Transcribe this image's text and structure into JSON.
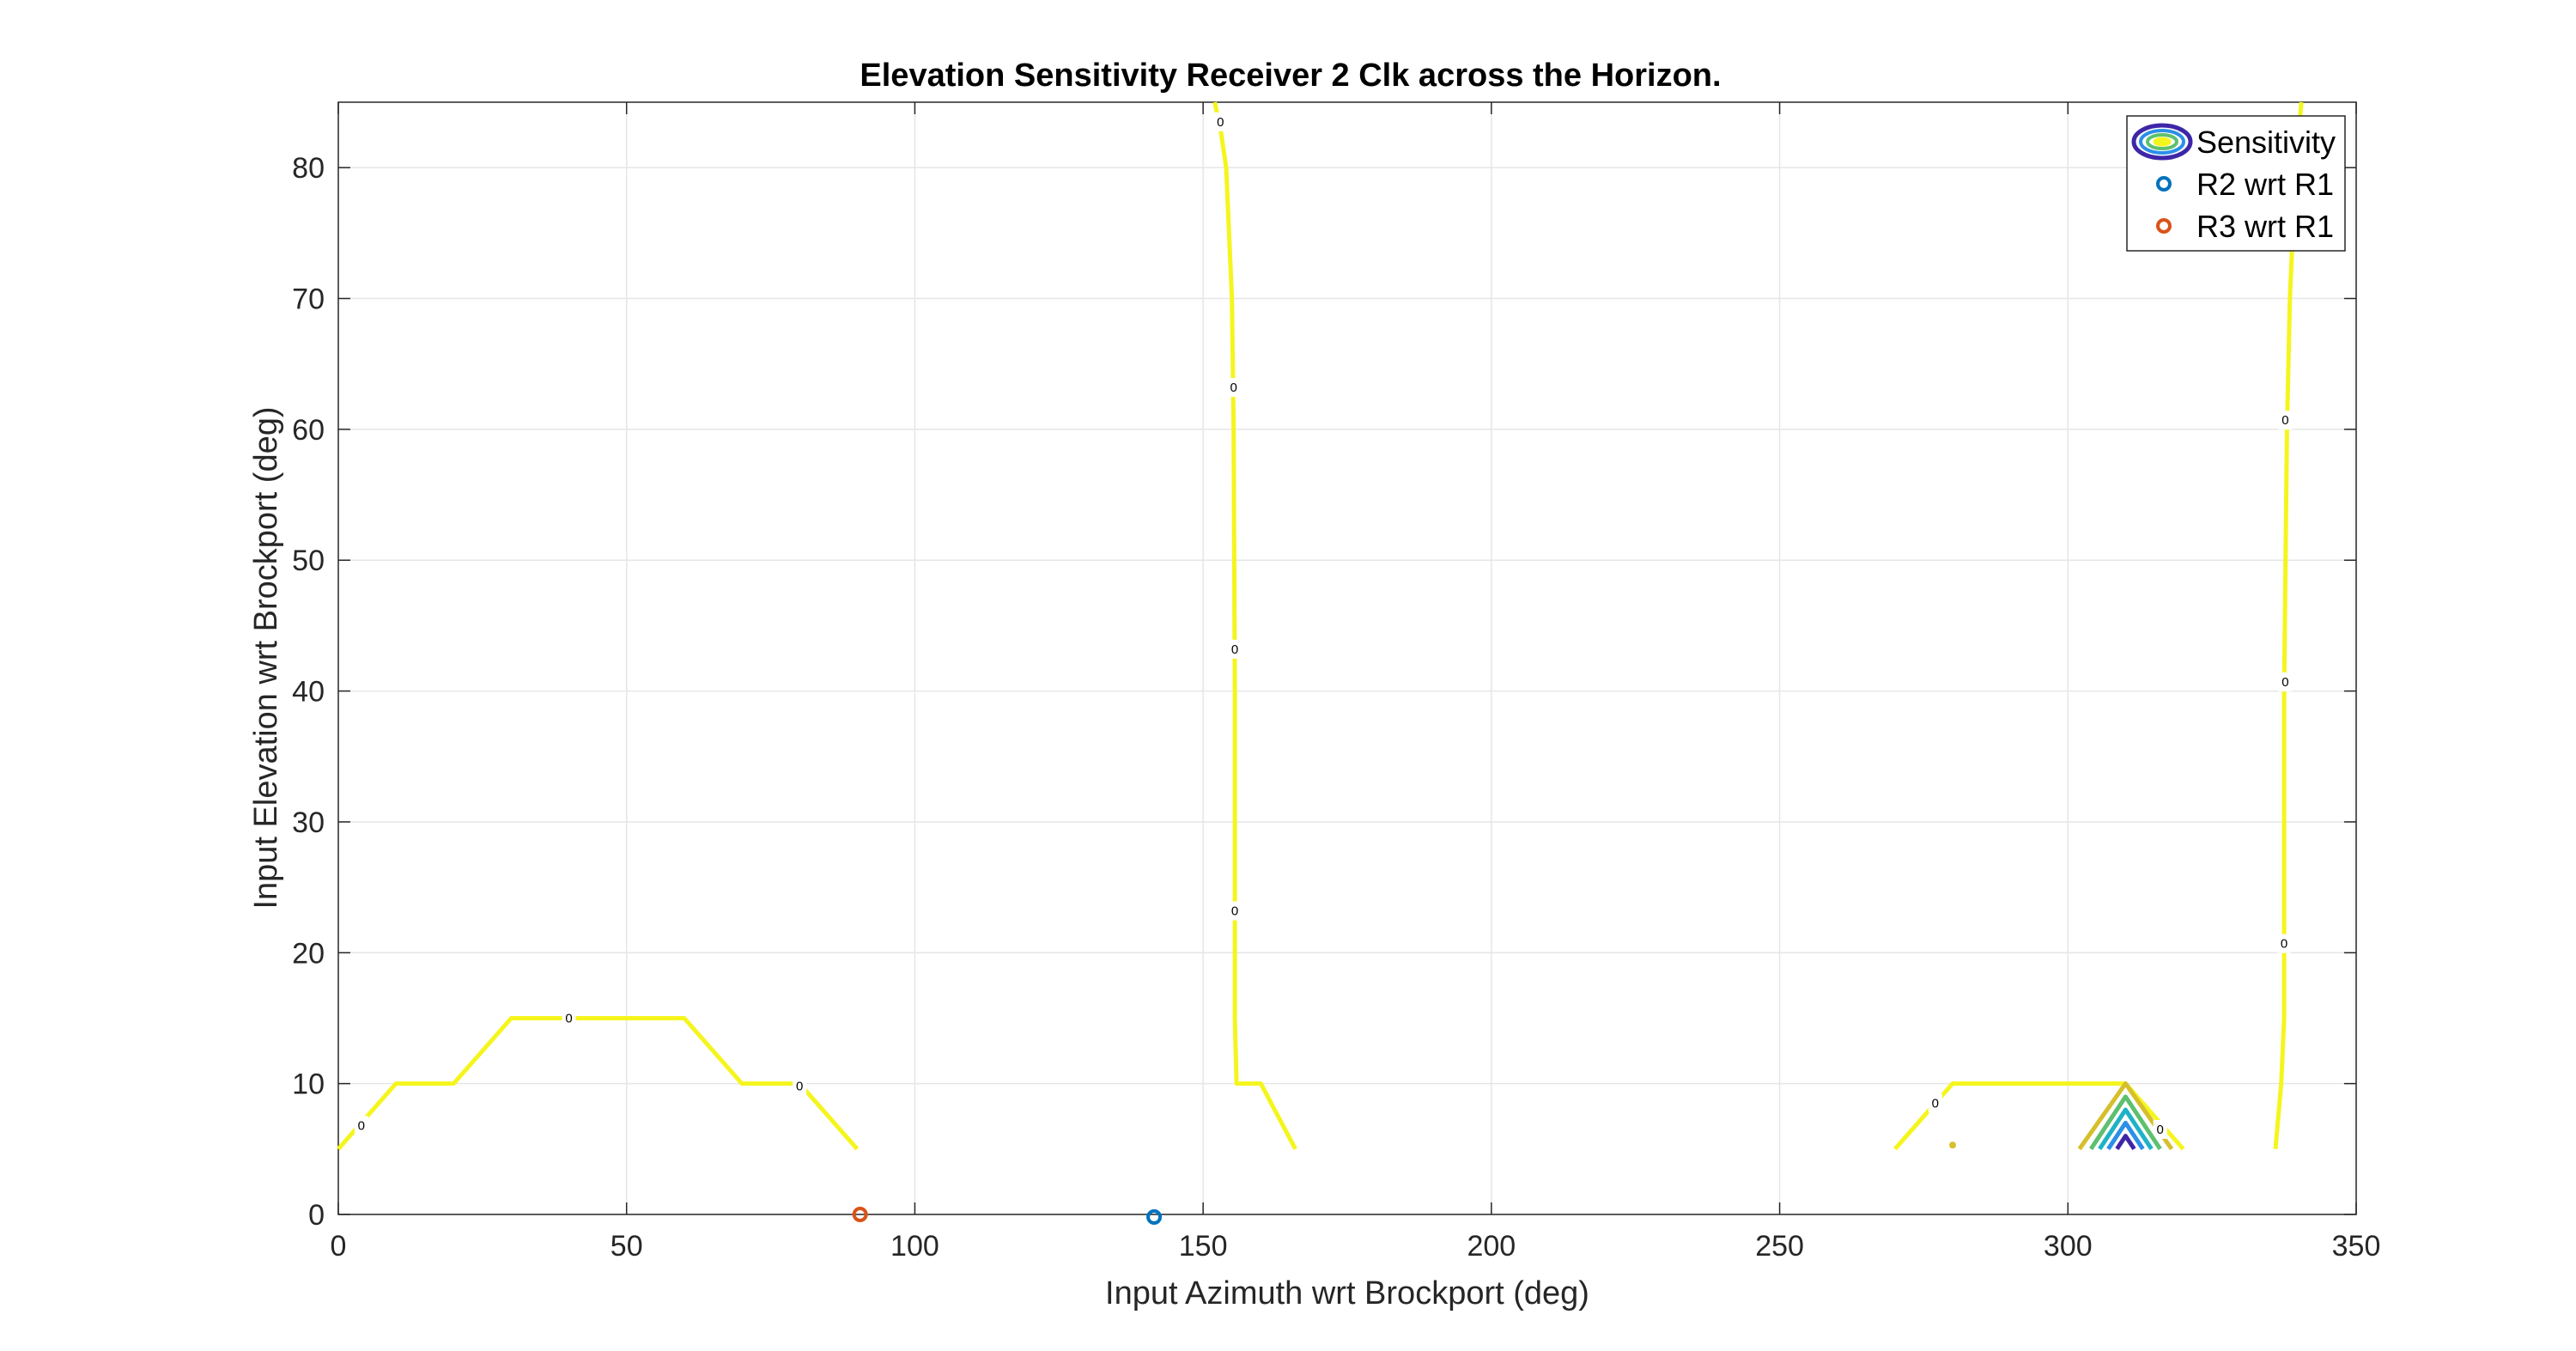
{
  "chart_data": {
    "type": "contour",
    "title": "Elevation Sensitivity Receiver 2 Clk across the Horizon.",
    "xlabel": "Input Azimuth wrt Brockport (deg)",
    "ylabel": "Input Elevation wrt Brockport (deg)",
    "xlim": [
      0,
      350
    ],
    "ylim": [
      0,
      85
    ],
    "xticks": [
      0,
      50,
      100,
      150,
      200,
      250,
      300,
      350
    ],
    "yticks": [
      0,
      10,
      20,
      30,
      40,
      50,
      60,
      70,
      80
    ],
    "grid": true,
    "legend": {
      "placement": "top-right",
      "entries": [
        "Sensitivity",
        "R2 wrt R1",
        "R3 wrt R1"
      ]
    },
    "contours": [
      {
        "level": 0,
        "color": "#f5f51e",
        "points": [
          [
            0,
            5
          ],
          [
            10,
            10
          ],
          [
            20,
            10
          ],
          [
            30,
            15
          ],
          [
            60,
            15
          ],
          [
            70,
            10
          ],
          [
            80,
            10
          ],
          [
            90,
            5
          ]
        ],
        "labels": [
          [
            4,
            6.8
          ],
          [
            40,
            15
          ],
          [
            80,
            9.8
          ]
        ]
      },
      {
        "level": 0,
        "color": "#f5f51e",
        "points": [
          [
            152,
            85
          ],
          [
            153,
            83
          ],
          [
            154,
            80
          ],
          [
            155,
            70
          ],
          [
            155.3,
            60
          ],
          [
            155.5,
            40
          ],
          [
            155.5,
            20
          ],
          [
            155.5,
            15
          ],
          [
            155.8,
            10
          ],
          [
            160,
            10
          ],
          [
            166,
            5
          ]
        ],
        "labels": [
          [
            153,
            83.5
          ],
          [
            155.3,
            63.2
          ],
          [
            155.5,
            43.2
          ],
          [
            155.5,
            23.2
          ]
        ]
      },
      {
        "level": 0,
        "color": "#f5f51e",
        "points": [
          [
            270,
            5
          ],
          [
            280,
            10
          ],
          [
            310,
            10
          ],
          [
            320,
            5
          ]
        ],
        "labels": [
          [
            277,
            8.5
          ]
        ]
      },
      {
        "level": 0,
        "color": "#f5f51e",
        "points": [
          [
            340.5,
            85
          ],
          [
            339.5,
            80
          ],
          [
            338.5,
            70
          ],
          [
            338,
            60
          ],
          [
            337.5,
            40
          ],
          [
            337.5,
            20
          ],
          [
            337.5,
            15
          ],
          [
            337,
            10
          ],
          [
            336,
            5
          ]
        ],
        "labels": [
          [
            337.7,
            60.7
          ],
          [
            337.7,
            40.7
          ],
          [
            337.5,
            20.7
          ]
        ]
      },
      {
        "level": "inner-1",
        "color": "#d6bf2c",
        "points": [
          [
            302,
            5
          ],
          [
            310,
            10
          ],
          [
            318,
            5
          ]
        ],
        "labels": [
          [
            316,
            6.5
          ]
        ]
      },
      {
        "level": "inner-2",
        "color": "#5dc06e",
        "points": [
          [
            304,
            5
          ],
          [
            310,
            9
          ],
          [
            316,
            5
          ]
        ],
        "labels": []
      },
      {
        "level": "inner-3",
        "color": "#1fb2c6",
        "points": [
          [
            305.5,
            5
          ],
          [
            310,
            8
          ],
          [
            314.5,
            5
          ]
        ],
        "labels": []
      },
      {
        "level": "inner-4",
        "color": "#2c8fe8",
        "points": [
          [
            307,
            5
          ],
          [
            310,
            7
          ],
          [
            313,
            5
          ]
        ],
        "labels": []
      },
      {
        "level": "inner-5",
        "color": "#3e26a8",
        "points": [
          [
            308.5,
            5
          ],
          [
            310,
            6
          ],
          [
            311.5,
            5
          ]
        ],
        "labels": []
      }
    ],
    "contour_label_text": "0",
    "extra_marks": [
      {
        "x": 280,
        "y": 5.3,
        "color": "#d6bf2c"
      }
    ],
    "series": [
      {
        "name": "R2 wrt R1",
        "color": "#0072bd",
        "points": [
          [
            141.5,
            -0.2
          ]
        ]
      },
      {
        "name": "R3 wrt R1",
        "color": "#d95319",
        "points": [
          [
            90.5,
            0
          ]
        ]
      }
    ]
  }
}
